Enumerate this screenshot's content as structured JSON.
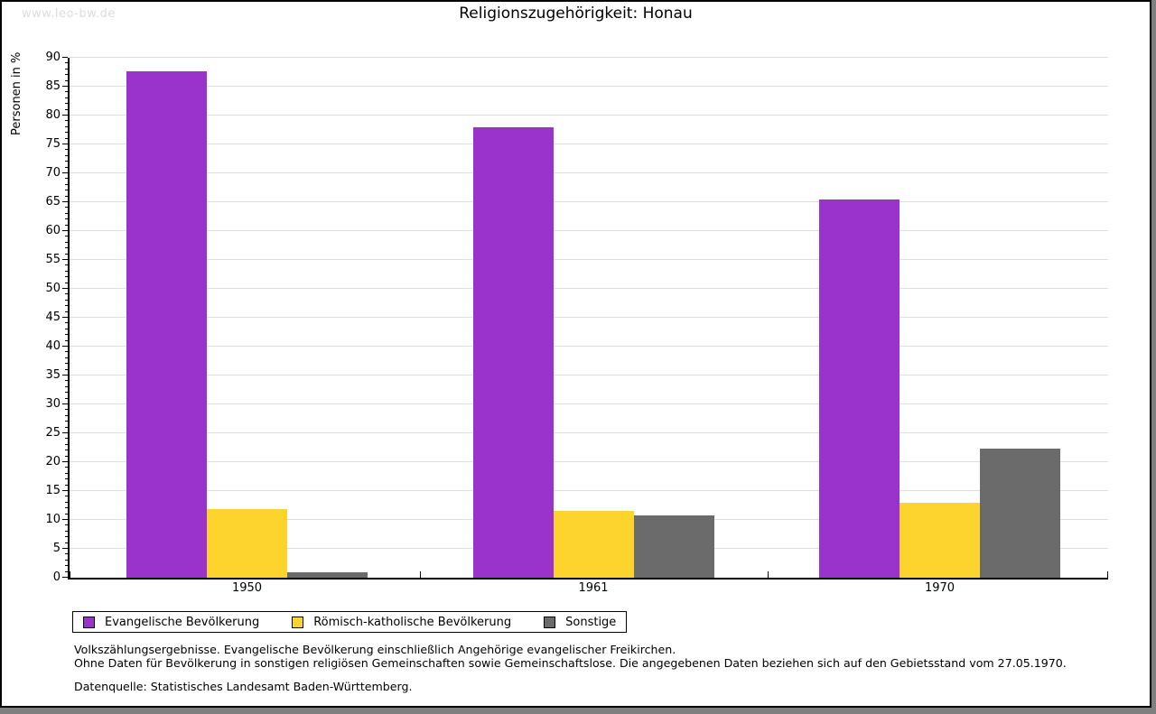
{
  "watermark": "www.leo-bw.de",
  "chart_data": {
    "type": "bar",
    "title": "Religionszugehörigkeit: Honau",
    "ylabel": "Personen in %",
    "xlabel": "",
    "categories": [
      "1950",
      "1961",
      "1970"
    ],
    "series": [
      {
        "name": "Evangelische Bevölkerung",
        "color": "#9933CC",
        "values": [
          87.6,
          78.0,
          65.4
        ]
      },
      {
        "name": "Römisch-katholische Bevölkerung",
        "color": "#FDD32E",
        "values": [
          11.9,
          11.6,
          12.9
        ]
      },
      {
        "name": "Sonstige",
        "color": "#6B6B6B",
        "values": [
          0.9,
          10.8,
          22.3
        ]
      }
    ],
    "ylim": [
      0,
      90
    ],
    "ytick_step": 5,
    "yminor_step": 1,
    "grid": true,
    "legend_position": "bottom"
  },
  "footer": {
    "line1": "Volkszählungsergebnisse. Evangelische Bevölkerung einschließlich Angehörige evangelischer Freikirchen.",
    "line2": "Ohne Daten für Bevölkerung in sonstigen religiösen Gemeinschaften sowie Gemeinschaftslose. Die angegebenen Daten beziehen sich auf den Gebietsstand vom 27.05.1970.",
    "source": "Datenquelle: Statistisches Landesamt Baden-Württemberg."
  },
  "colors": {
    "evangelisch": "#9933CC",
    "katholisch": "#FDD32E",
    "sonstige": "#6B6B6B",
    "gridline": "#DEDEDE",
    "watermark": "#DCDCDC",
    "axis": "#000000",
    "background": "#FFFFFF",
    "outer_shadow": "#7F7F7F"
  }
}
